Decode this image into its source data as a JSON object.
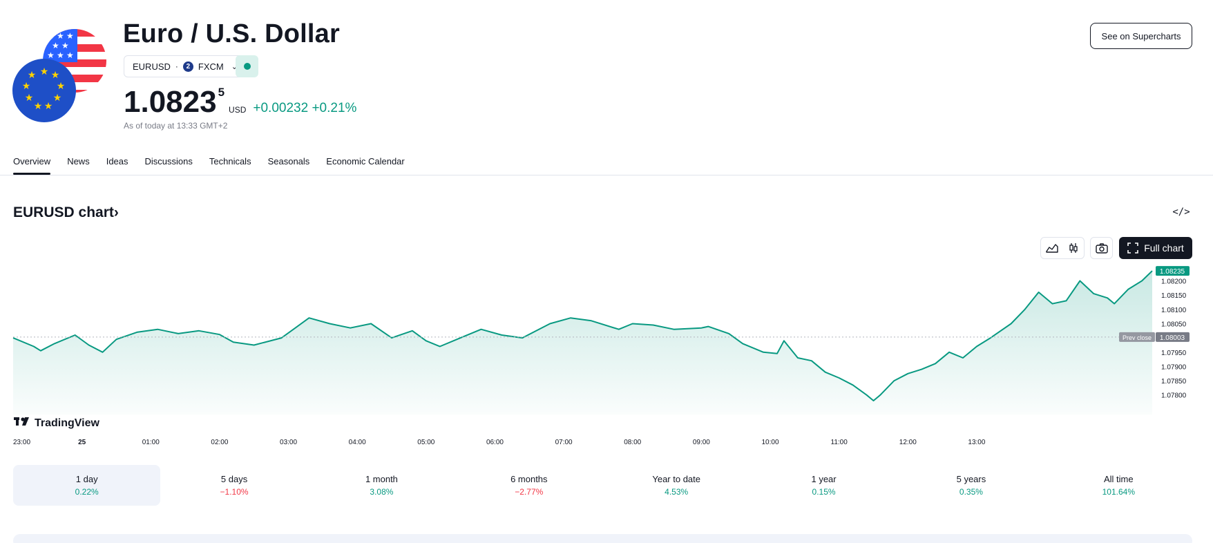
{
  "header": {
    "title": "Euro / U.S. Dollar",
    "symbol": "EURUSD",
    "exchange": "FXCM",
    "exchange_icon_glyph": "2",
    "market_status_color": "#089981",
    "price_main": "1.0823",
    "price_sup": "5",
    "currency": "USD",
    "change": "+0.00232",
    "change_pct": "+0.21%",
    "as_of": "As of today at 13:33 GMT+2",
    "supercharts_label": "See on Supercharts"
  },
  "tabs": [
    {
      "label": "Overview",
      "active": true
    },
    {
      "label": "News"
    },
    {
      "label": "Ideas"
    },
    {
      "label": "Discussions"
    },
    {
      "label": "Technicals"
    },
    {
      "label": "Seasonals"
    },
    {
      "label": "Economic Calendar"
    }
  ],
  "chart_section": {
    "title": "EURUSD chart",
    "title_chevron": "›",
    "full_chart_label": "Full chart",
    "logo_text": "TradingView"
  },
  "chart_data": {
    "type": "area",
    "line_color": "#089981",
    "x_ticks": [
      "23:00",
      "25",
      "01:00",
      "02:00",
      "03:00",
      "04:00",
      "05:00",
      "06:00",
      "07:00",
      "08:00",
      "09:00",
      "10:00",
      "11:00",
      "12:00",
      "13:00"
    ],
    "y_ticks": [
      "1.08200",
      "1.08150",
      "1.08100",
      "1.08050",
      "1.07950",
      "1.07900",
      "1.07850",
      "1.07800"
    ],
    "y_range": [
      1.0778,
      1.0824
    ],
    "last_price_label": "1.08235",
    "prev_close_label": "Prev close",
    "prev_close_value": "1.08003",
    "series": [
      {
        "hour": 23.0,
        "value": 1.08
      },
      {
        "hour": 23.3,
        "value": 1.0797
      },
      {
        "hour": 23.4,
        "value": 1.07955
      },
      {
        "hour": 23.6,
        "value": 1.0798
      },
      {
        "hour": 23.9,
        "value": 1.0801
      },
      {
        "hour": 24.1,
        "value": 1.07975
      },
      {
        "hour": 24.3,
        "value": 1.0795
      },
      {
        "hour": 24.5,
        "value": 1.07995
      },
      {
        "hour": 24.8,
        "value": 1.0802
      },
      {
        "hour": 25.1,
        "value": 1.0803
      },
      {
        "hour": 25.4,
        "value": 1.08015
      },
      {
        "hour": 25.7,
        "value": 1.08025
      },
      {
        "hour": 26.0,
        "value": 1.08012
      },
      {
        "hour": 26.2,
        "value": 1.07985
      },
      {
        "hour": 26.5,
        "value": 1.07975
      },
      {
        "hour": 26.9,
        "value": 1.08
      },
      {
        "hour": 27.1,
        "value": 1.08035
      },
      {
        "hour": 27.3,
        "value": 1.0807
      },
      {
        "hour": 27.6,
        "value": 1.0805
      },
      {
        "hour": 27.9,
        "value": 1.08035
      },
      {
        "hour": 28.2,
        "value": 1.0805
      },
      {
        "hour": 28.5,
        "value": 1.08
      },
      {
        "hour": 28.8,
        "value": 1.08025
      },
      {
        "hour": 29.0,
        "value": 1.0799
      },
      {
        "hour": 29.2,
        "value": 1.0797
      },
      {
        "hour": 29.5,
        "value": 1.08
      },
      {
        "hour": 29.8,
        "value": 1.0803
      },
      {
        "hour": 30.1,
        "value": 1.0801
      },
      {
        "hour": 30.4,
        "value": 1.08
      },
      {
        "hour": 30.8,
        "value": 1.0805
      },
      {
        "hour": 31.1,
        "value": 1.0807
      },
      {
        "hour": 31.4,
        "value": 1.0806
      },
      {
        "hour": 31.8,
        "value": 1.0803
      },
      {
        "hour": 32.0,
        "value": 1.0805
      },
      {
        "hour": 32.3,
        "value": 1.08045
      },
      {
        "hour": 32.6,
        "value": 1.0803
      },
      {
        "hour": 33.0,
        "value": 1.08035
      },
      {
        "hour": 33.1,
        "value": 1.0804
      },
      {
        "hour": 33.4,
        "value": 1.08015
      },
      {
        "hour": 33.6,
        "value": 1.0798
      },
      {
        "hour": 33.9,
        "value": 1.0795
      },
      {
        "hour": 34.1,
        "value": 1.07945
      },
      {
        "hour": 34.2,
        "value": 1.0799
      },
      {
        "hour": 34.4,
        "value": 1.0793
      },
      {
        "hour": 34.6,
        "value": 1.0792
      },
      {
        "hour": 34.8,
        "value": 1.0788
      },
      {
        "hour": 35.0,
        "value": 1.0786
      },
      {
        "hour": 35.2,
        "value": 1.07835
      },
      {
        "hour": 35.4,
        "value": 1.078
      },
      {
        "hour": 35.5,
        "value": 1.0778
      },
      {
        "hour": 35.6,
        "value": 1.078
      },
      {
        "hour": 35.8,
        "value": 1.0785
      },
      {
        "hour": 36.0,
        "value": 1.07875
      },
      {
        "hour": 36.2,
        "value": 1.0789
      },
      {
        "hour": 36.4,
        "value": 1.0791
      },
      {
        "hour": 36.6,
        "value": 1.0795
      },
      {
        "hour": 36.8,
        "value": 1.0793
      },
      {
        "hour": 37.0,
        "value": 1.0797
      },
      {
        "hour": 37.2,
        "value": 1.08
      },
      {
        "hour": 37.5,
        "value": 1.0805
      },
      {
        "hour": 37.7,
        "value": 1.081
      },
      {
        "hour": 37.9,
        "value": 1.0816
      },
      {
        "hour": 38.1,
        "value": 1.0812
      },
      {
        "hour": 38.3,
        "value": 1.0813
      },
      {
        "hour": 38.5,
        "value": 1.082
      },
      {
        "hour": 38.7,
        "value": 1.08155
      },
      {
        "hour": 38.9,
        "value": 1.0814
      },
      {
        "hour": 39.0,
        "value": 1.0812
      },
      {
        "hour": 39.2,
        "value": 1.0817
      },
      {
        "hour": 39.4,
        "value": 1.082
      },
      {
        "hour": 39.55,
        "value": 1.08235
      }
    ]
  },
  "periods": [
    {
      "label": "1 day",
      "value": "0.22%",
      "sign": "pos",
      "active": true
    },
    {
      "label": "5 days",
      "value": "−1.10%",
      "sign": "neg"
    },
    {
      "label": "1 month",
      "value": "3.08%",
      "sign": "pos"
    },
    {
      "label": "6 months",
      "value": "−2.77%",
      "sign": "neg"
    },
    {
      "label": "Year to date",
      "value": "4.53%",
      "sign": "pos"
    },
    {
      "label": "1 year",
      "value": "0.15%",
      "sign": "pos"
    },
    {
      "label": "5 years",
      "value": "0.35%",
      "sign": "pos"
    },
    {
      "label": "All time",
      "value": "101.64%",
      "sign": "pos"
    }
  ],
  "colors": {
    "positive": "#089981",
    "negative": "#f23645",
    "text": "#131722",
    "muted": "#787b86"
  }
}
